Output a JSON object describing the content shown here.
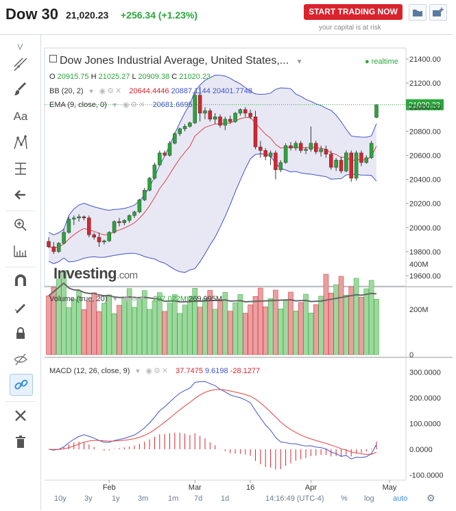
{
  "header": {
    "symbol": "Dow 30",
    "price": "21,020.23",
    "change": "+256.34 (+1.23%)",
    "trade_button": "START TRADING NOW",
    "capital_note": "your capital is at risk"
  },
  "colors": {
    "up": "#2aa63a",
    "down": "#d9232d",
    "bb_fill": "#e8e8f5",
    "bb_line": "#3f52c8",
    "ema": "#e04040"
  },
  "main": {
    "instrument": "Dow Jones Industrial Average, United States,...",
    "realtime": "realtime",
    "ohlc": {
      "o_label": "O",
      "o": "20915.75",
      "h_label": "H",
      "h": "21025.27",
      "l_label": "L",
      "l": "20909.38",
      "c_label": "C",
      "c": "21020.23"
    },
    "bb_label": "BB (20, 2)",
    "bb_values": [
      "20644.4446",
      "20887.1144",
      "20401.7748"
    ],
    "ema_label": "EMA (9, close, 0)",
    "ema_value": "20681.6695",
    "logo": "Investing",
    "logo_suffix": ".com",
    "price_ticks": [
      "21400.00",
      "21200.00",
      "21000.00",
      "20800.00",
      "20600.00",
      "20400.00",
      "20200.00",
      "20000.00",
      "19800.00",
      "19600.00"
    ],
    "last_price_tag": "21020.23"
  },
  "volume": {
    "label": "Volume (true, 20)",
    "value1": "207.022M",
    "value2": "269.995M",
    "ticks": [
      "400M",
      "200M",
      "0"
    ]
  },
  "macd": {
    "label": "MACD (12, 26, close, 9)",
    "values": [
      "37.7475",
      "9.6198",
      "-28.1277"
    ],
    "ticks": [
      "300.0000",
      "200.0000",
      "100.0000",
      "0.0000",
      "-100.0000"
    ]
  },
  "xaxis": {
    "labels": [
      "Feb",
      "Mar",
      "16",
      "Apr",
      "May"
    ]
  },
  "bottom": {
    "ranges": [
      "10y",
      "3y",
      "1y",
      "3m",
      "7d",
      "1d"
    ],
    "time": "14:16:49 (UTC-4)",
    "pct": "%",
    "log": "log",
    "auto": "auto"
  },
  "chart_data": {
    "type": "candlestick",
    "title": "Dow Jones Industrial Average, United States",
    "ylim": [
      19550,
      21450
    ],
    "candles": [
      [
        19885,
        19920,
        19830,
        19840
      ],
      [
        19840,
        19880,
        19780,
        19800
      ],
      [
        19800,
        19880,
        19790,
        19870
      ],
      [
        19870,
        19990,
        19860,
        19960
      ],
      [
        19960,
        20090,
        19950,
        20070
      ],
      [
        20070,
        20100,
        20020,
        20080
      ],
      [
        20080,
        20110,
        20050,
        20090
      ],
      [
        20090,
        20100,
        20060,
        20080
      ],
      [
        20080,
        20100,
        19920,
        19940
      ],
      [
        19940,
        19960,
        19900,
        19920
      ],
      [
        19920,
        19960,
        19840,
        19880
      ],
      [
        19880,
        19900,
        19860,
        19890
      ],
      [
        19890,
        19970,
        19880,
        19960
      ],
      [
        19960,
        20060,
        19950,
        20050
      ],
      [
        20050,
        20080,
        20010,
        20040
      ],
      [
        20040,
        20070,
        20020,
        20060
      ],
      [
        20060,
        20110,
        20040,
        20100
      ],
      [
        20100,
        20140,
        20080,
        20130
      ],
      [
        20130,
        20240,
        20120,
        20230
      ],
      [
        20230,
        20330,
        20220,
        20310
      ],
      [
        20310,
        20420,
        20300,
        20410
      ],
      [
        20410,
        20540,
        20400,
        20520
      ],
      [
        20520,
        20640,
        20510,
        20620
      ],
      [
        20620,
        20640,
        20590,
        20600
      ],
      [
        20600,
        20720,
        20590,
        20700
      ],
      [
        20700,
        20790,
        20690,
        20780
      ],
      [
        20780,
        20830,
        20760,
        20820
      ],
      [
        20820,
        20860,
        20800,
        20840
      ],
      [
        20840,
        20880,
        20830,
        20870
      ],
      [
        20870,
        21130,
        20860,
        21100
      ],
      [
        21100,
        21170,
        20880,
        20950
      ],
      [
        20950,
        21000,
        20900,
        20970
      ],
      [
        20970,
        20990,
        20880,
        20900
      ],
      [
        20900,
        20950,
        20860,
        20920
      ],
      [
        20920,
        20940,
        20830,
        20850
      ],
      [
        20850,
        20920,
        20810,
        20900
      ],
      [
        20900,
        20930,
        20860,
        20880
      ],
      [
        20880,
        20960,
        20870,
        20950
      ],
      [
        20950,
        20990,
        20930,
        20980
      ],
      [
        20980,
        21000,
        20920,
        20950
      ],
      [
        20950,
        20980,
        20900,
        20920
      ],
      [
        20920,
        20970,
        20650,
        20670
      ],
      [
        20670,
        20720,
        20580,
        20640
      ],
      [
        20640,
        20660,
        20560,
        20590
      ],
      [
        20590,
        20640,
        20520,
        20620
      ],
      [
        20620,
        20640,
        20400,
        20480
      ],
      [
        20480,
        20560,
        20460,
        20540
      ],
      [
        20540,
        20700,
        20530,
        20680
      ],
      [
        20680,
        20710,
        20640,
        20660
      ],
      [
        20660,
        20720,
        20640,
        20700
      ],
      [
        20700,
        20720,
        20620,
        20640
      ],
      [
        20640,
        20670,
        20610,
        20650
      ],
      [
        20650,
        20840,
        20630,
        20700
      ],
      [
        20700,
        20720,
        20610,
        20630
      ],
      [
        20630,
        20680,
        20590,
        20650
      ],
      [
        20650,
        20680,
        20580,
        20610
      ],
      [
        20610,
        20640,
        20480,
        20500
      ],
      [
        20500,
        20580,
        20470,
        20560
      ],
      [
        20560,
        20590,
        20450,
        20470
      ],
      [
        20470,
        20640,
        20460,
        20620
      ],
      [
        20620,
        20640,
        20380,
        20410
      ],
      [
        20410,
        20640,
        20390,
        20620
      ],
      [
        20620,
        20640,
        20510,
        20540
      ],
      [
        20540,
        20600,
        20530,
        20580
      ],
      [
        20580,
        20720,
        20570,
        20700
      ],
      [
        20915,
        21025,
        20909,
        21020
      ]
    ]
  }
}
